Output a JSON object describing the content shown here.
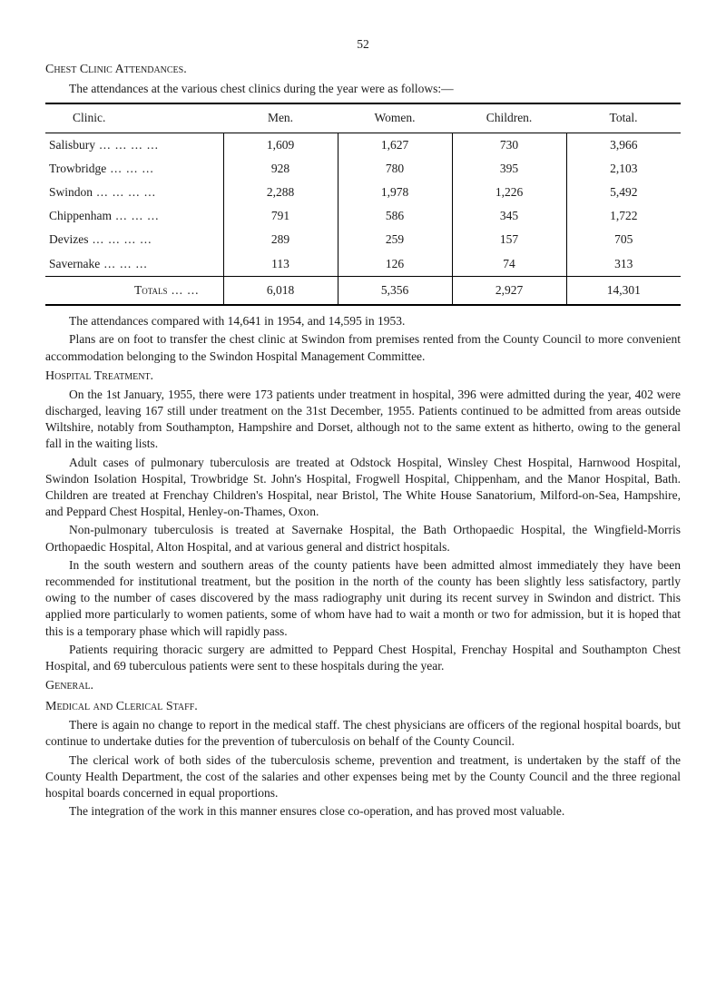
{
  "page_number": "52",
  "main_title": "Chest Clinic Attendances.",
  "intro": "The attendances at the various chest clinics during the year were as follows:—",
  "table": {
    "headers": [
      "Clinic.",
      "Men.",
      "Women.",
      "Children.",
      "Total."
    ],
    "rows": [
      {
        "clinic": "Salisbury",
        "men": "1,609",
        "women": "1,627",
        "children": "730",
        "total": "3,966"
      },
      {
        "clinic": "Trowbridge",
        "men": "928",
        "women": "780",
        "children": "395",
        "total": "2,103"
      },
      {
        "clinic": "Swindon",
        "men": "2,288",
        "women": "1,978",
        "children": "1,226",
        "total": "5,492"
      },
      {
        "clinic": "Chippenham",
        "men": "791",
        "women": "586",
        "children": "345",
        "total": "1,722"
      },
      {
        "clinic": "Devizes",
        "men": "289",
        "women": "259",
        "children": "157",
        "total": "705"
      },
      {
        "clinic": "Savernake",
        "men": "113",
        "women": "126",
        "children": "74",
        "total": "313"
      }
    ],
    "totals": {
      "label": "Totals",
      "men": "6,018",
      "women": "5,356",
      "children": "2,927",
      "total": "14,301"
    }
  },
  "compare": "The attendances compared with 14,641 in 1954, and 14,595 in 1953.",
  "plans": "Plans are on foot to transfer the chest clinic at Swindon from premises rented from the County Council to more convenient accommodation belonging to the Swindon Hospital Management Committee.",
  "hospital_title": "Hospital Treatment.",
  "hospital_p1": "On the 1st January, 1955, there were 173 patients under treatment in hospital, 396 were admitted during the year, 402 were discharged, leaving 167 still under treatment on the 31st December, 1955. Patients continued to be admitted from areas outside Wiltshire, notably from Southampton, Hampshire and Dorset, although not to the same extent as hitherto, owing to the general fall in the waiting lists.",
  "hospital_p2": "Adult cases of pulmonary tuberculosis are treated at Odstock Hospital, Winsley Chest Hospital, Harnwood Hospital, Swindon Isolation Hospital, Trowbridge St. John's Hospital, Frogwell Hospital, Chippenham, and the Manor Hospital, Bath. Children are treated at Frenchay Children's Hospital, near Bristol, The White House Sanatorium, Milford-on-Sea, Hampshire, and Peppard Chest Hospital, Henley-on-Thames, Oxon.",
  "hospital_p3": "Non-pulmonary tuberculosis is treated at Savernake Hospital, the Bath Orthopaedic Hospital, the Wingfield-Morris Orthopaedic Hospital, Alton Hospital, and at various general and district hospitals.",
  "hospital_p4": "In the south western and southern areas of the county patients have been admitted almost immediately they have been recommended for institutional treatment, but the position in the north of the county has been slightly less satisfactory, partly owing to the number of cases discovered by the mass radiography unit during its recent survey in Swindon and district. This applied more particularly to women patients, some of whom have had to wait a month or two for admission, but it is hoped that this is a temporary phase which will rapidly pass.",
  "hospital_p5": "Patients requiring thoracic surgery are admitted to Peppard Chest Hospital, Frenchay Hospital and Southampton Chest Hospital, and 69 tuberculous patients were sent to these hospitals during the year.",
  "general_title": "General.",
  "medical_title": "Medical and Clerical Staff.",
  "medical_p1": "There is again no change to report in the medical staff. The chest physicians are officers of the regional hospital boards, but continue to undertake duties for the prevention of tuberculosis on behalf of the County Council.",
  "medical_p2": "The clerical work of both sides of the tuberculosis scheme, prevention and treatment, is undertaken by the staff of the County Health Department, the cost of the salaries and other expenses being met by the County Council and the three regional hospital boards concerned in equal proportions.",
  "medical_p3": "The integration of the work in this manner ensures close co-operation, and has proved most valuable."
}
